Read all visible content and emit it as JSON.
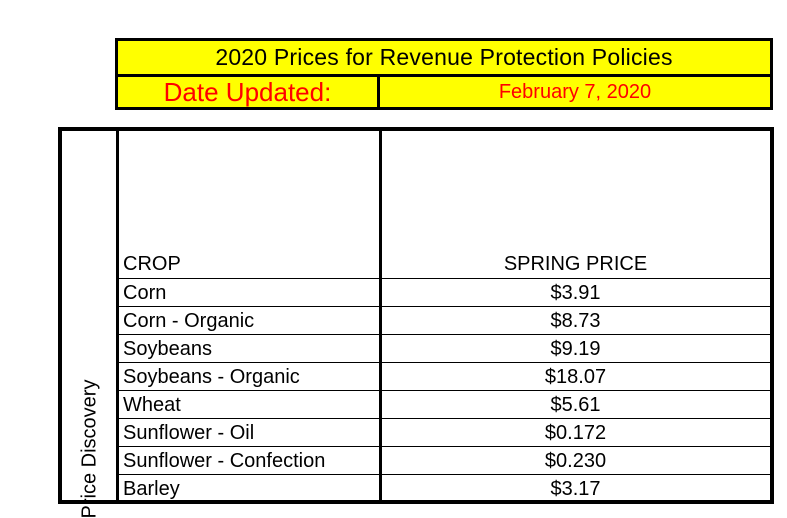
{
  "header": {
    "title": "2020 Prices for Revenue Protection Policies",
    "date_label": "Date Updated:",
    "date_value": "February 7, 2020",
    "colors": {
      "band": "#ffff00",
      "date_text": "#ff0000"
    }
  },
  "table": {
    "side_label": "Price Discovery",
    "columns": [
      "CROP",
      "SPRING PRICE"
    ],
    "rows": [
      {
        "crop": "Corn",
        "price": "$3.91"
      },
      {
        "crop": "Corn - Organic",
        "price": "$8.73"
      },
      {
        "crop": "Soybeans",
        "price": "$9.19"
      },
      {
        "crop": "Soybeans - Organic",
        "price": "$18.07"
      },
      {
        "crop": "Wheat",
        "price": "$5.61"
      },
      {
        "crop": "Sunflower - Oil",
        "price": "$0.172"
      },
      {
        "crop": "Sunflower - Confection",
        "price": "$0.230"
      },
      {
        "crop": "Barley",
        "price": "$3.17"
      }
    ]
  }
}
